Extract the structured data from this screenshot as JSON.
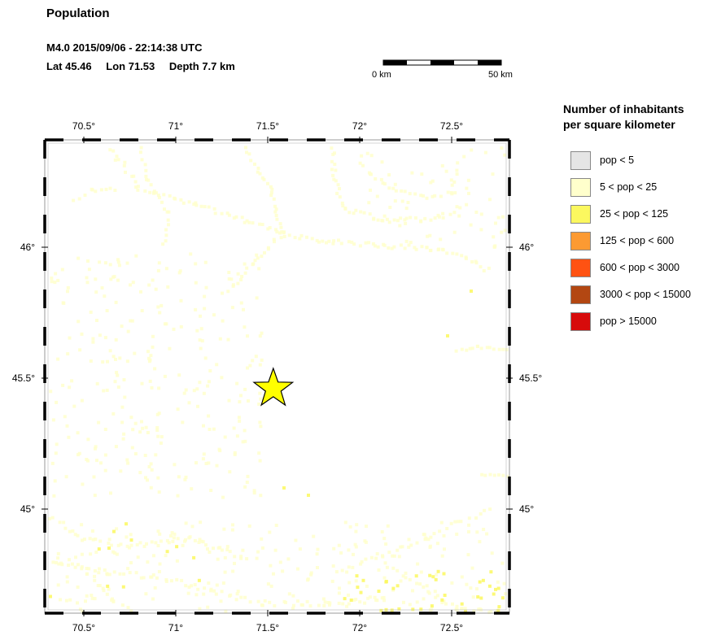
{
  "header": {
    "title": "Population",
    "event_line": "M4.0  2015/09/06 - 22:14:38 UTC",
    "lat": "Lat 45.46",
    "lon": "Lon  71.53",
    "depth": "Depth  7.7 km"
  },
  "scale": {
    "left_label": "0 km",
    "right_label": "50 km"
  },
  "map": {
    "lon_ticks": [
      "70.5°",
      "71°",
      "71.5°",
      "72°",
      "72.5°"
    ],
    "lat_ticks": [
      "46°",
      "45.5°",
      "45°"
    ],
    "epicenter": {
      "lat": 45.46,
      "lon": 71.53,
      "marker": "star-icon",
      "color": "#ffff00"
    }
  },
  "legend": {
    "title_line1": "Number of inhabitants",
    "title_line2": "per square kilometer",
    "items": [
      {
        "label": "pop < 5",
        "color": "#e5e5e5"
      },
      {
        "label": "5 < pop < 25",
        "color": "#ffffcc"
      },
      {
        "label": "25 < pop < 125",
        "color": "#fbf85f"
      },
      {
        "label": "125 < pop < 600",
        "color": "#fc9a32"
      },
      {
        "label": "600 < pop < 3000",
        "color": "#ff5212"
      },
      {
        "label": "3000 < pop < 15000",
        "color": "#b34712"
      },
      {
        "label": "pop > 15000",
        "color": "#d70b0b"
      }
    ]
  }
}
